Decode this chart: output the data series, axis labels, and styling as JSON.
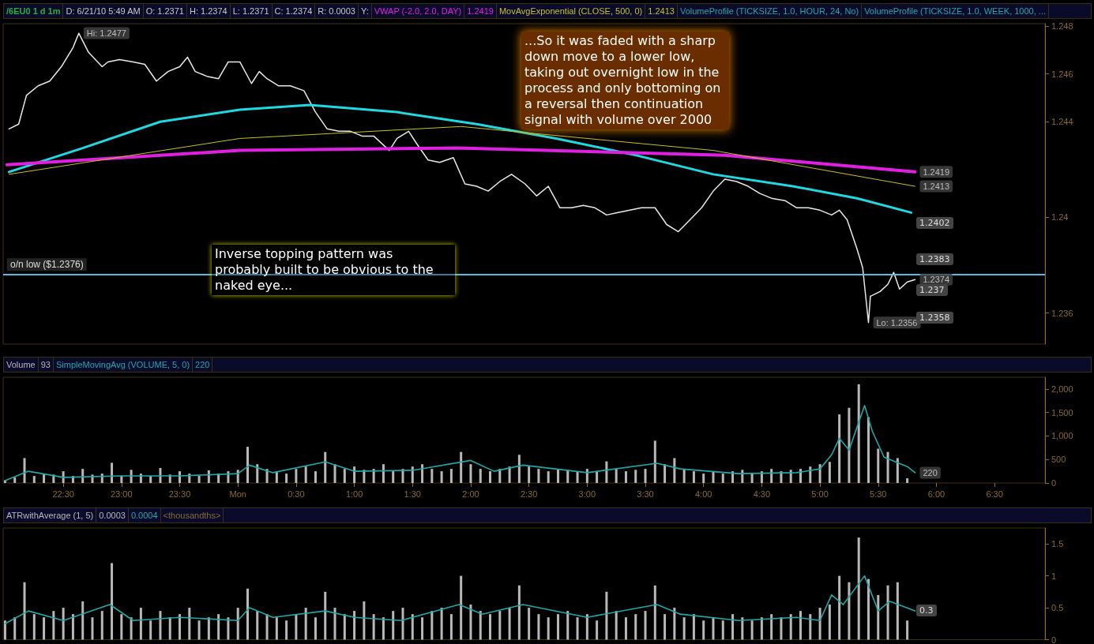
{
  "chart_data": [
    {
      "type": "line",
      "title": "/6EU0 1 d 1m",
      "annotations": [
        "D: 6/21/10 5:49 AM",
        "O: 1.2371",
        "H: 1.2374",
        "L: 1.2371",
        "C: 1.2374",
        "R: 0.0003",
        "Y:",
        "1.2419",
        "1.2413",
        "VolumeProfile (TICKSIZE, 1.0, HOUR, 24, No)",
        "VolumeProfile (TICKSIZE, 1.0, WEEK, 1000, ...",
        "Inverse topping pattern was probably built to be obvious to the naked eye...",
        "...So it was faded with  a sharp down move to a lower low, taking out overnight low in the process and only bottoming on a reversal then continuation signal with volume over 2000",
        "1.2402",
        "1.2383",
        "1.237",
        "1.2358",
        {
          "text": "Hi: 1.2477",
          "x": "--06-20T22:38",
          "y": 1.2477
        },
        {
          "text": "Lo: 1.2356",
          "x": "--06-21T05:25",
          "y": 1.2356
        },
        {
          "text": "1.2419",
          "x": "--06-21T05:49",
          "y": 1.2419
        },
        {
          "text": "1.2413",
          "x": "--06-21T05:49",
          "y": 1.2413
        },
        {
          "text": "1.2374",
          "x": "--06-21T05:49",
          "y": 1.2374
        }
      ],
      "xlim": [
        "--06-20T21:59",
        "--06-21T06:56"
      ],
      "ylim": [
        1.2347,
        1.2481
      ],
      "yticks": [
        1.236,
        1.24,
        1.244,
        1.246,
        1.248
      ],
      "tick_labels": "y",
      "ref_lines": [
        {
          "axis": "y",
          "value": 1.2376,
          "label": "o/n low ($1.2376)",
          "color": "#5ab8e8"
        }
      ],
      "series": [
        {
          "color": "#e8e8e8",
          "x": [
            "--06-20T22:02",
            "--06-20T22:07",
            "--06-20T22:11",
            "--06-20T22:17",
            "--06-20T22:23",
            "--06-20T22:29",
            "--06-20T22:35",
            "--06-20T22:38",
            "--06-20T22:43",
            "--06-20T22:50",
            "--06-20T22:53",
            "--06-20T22:59",
            "--06-20T23:06",
            "--06-20T23:12",
            "--06-20T23:18",
            "--06-20T23:24",
            "--06-20T23:30",
            "--06-20T23:34",
            "--06-20T23:38",
            "--06-20T23:44",
            "--06-20T23:50",
            "--06-20T23:55",
            "--06-21T00:01",
            "--06-21T00:07",
            "--06-21T00:11",
            "--06-21T00:15",
            "--06-21T00:21",
            "--06-21T00:27",
            "--06-21T00:34",
            "--06-21T00:40",
            "--06-21T00:46",
            "--06-21T00:52",
            "--06-21T00:58",
            "--06-21T01:04",
            "--06-21T01:10",
            "--06-21T01:18",
            "--06-21T01:22",
            "--06-21T01:28",
            "--06-21T01:32",
            "--06-21T01:38",
            "--06-21T01:44",
            "--06-21T01:51",
            "--06-21T01:57",
            "--06-21T02:03",
            "--06-21T02:09",
            "--06-21T02:15",
            "--06-21T02:21",
            "--06-21T02:28",
            "--06-21T02:34",
            "--06-21T02:40",
            "--06-21T02:46",
            "--06-21T02:52",
            "--06-21T02:58",
            "--06-21T03:04",
            "--06-21T03:10",
            "--06-21T03:16",
            "--06-21T03:22",
            "--06-21T03:28",
            "--06-21T03:35",
            "--06-21T03:41",
            "--06-21T03:47",
            "--06-21T03:53",
            "--06-21T03:59",
            "--06-21T04:05",
            "--06-21T04:11",
            "--06-21T04:17",
            "--06-21T04:23",
            "--06-21T04:29",
            "--06-21T04:35",
            "--06-21T04:42",
            "--06-21T04:48",
            "--06-21T04:54",
            "--06-21T05:00",
            "--06-21T05:06",
            "--06-21T05:10",
            "--06-21T05:14",
            "--06-21T05:19",
            "--06-21T05:22",
            "--06-21T05:25",
            "--06-21T05:26",
            "--06-21T05:31",
            "--06-21T05:35",
            "--06-21T05:38",
            "--06-21T05:41",
            "--06-21T05:45",
            "--06-21T05:49"
          ],
          "values": [
            1.2437,
            1.2439,
            1.2451,
            1.2455,
            1.2457,
            1.2463,
            1.2471,
            1.2477,
            1.2469,
            1.2463,
            1.2465,
            1.2466,
            1.2465,
            1.2464,
            1.2457,
            1.2461,
            1.2463,
            1.2467,
            1.2461,
            1.2459,
            1.2458,
            1.2465,
            1.2465,
            1.2456,
            1.2461,
            1.2458,
            1.2455,
            1.2455,
            1.2453,
            1.2444,
            1.2437,
            1.2436,
            1.2436,
            1.2434,
            1.2434,
            1.2428,
            1.2433,
            1.2436,
            1.2431,
            1.2424,
            1.2423,
            1.2425,
            1.2414,
            1.2413,
            1.2411,
            1.2415,
            1.2418,
            1.2414,
            1.2409,
            1.2413,
            1.2404,
            1.2404,
            1.2405,
            1.2404,
            1.2401,
            1.2402,
            1.2403,
            1.2404,
            1.2404,
            1.2397,
            1.2394,
            1.2399,
            1.2404,
            1.2411,
            1.2416,
            1.2415,
            1.2413,
            1.241,
            1.2408,
            1.2407,
            1.2404,
            1.2404,
            1.2403,
            1.2401,
            1.2403,
            1.2399,
            1.2387,
            1.2379,
            1.2356,
            1.2367,
            1.2369,
            1.2372,
            1.2377,
            1.237,
            1.2373,
            1.2374
          ]
        },
        {
          "color": "#20d8e0",
          "x": [
            "--06-20T22:02",
            "--06-20T22:40",
            "--06-20T23:20",
            "--06-21T00:01",
            "--06-21T00:37",
            "--06-21T01:22",
            "--06-21T02:03",
            "--06-21T02:44",
            "--06-21T03:25",
            "--06-21T04:05",
            "--06-21T04:46",
            "--06-21T05:19",
            "--06-21T05:47"
          ],
          "values": [
            1.2419,
            1.2429,
            1.244,
            1.2445,
            1.2447,
            1.2444,
            1.2439,
            1.2433,
            1.2426,
            1.2418,
            1.2413,
            1.2408,
            1.2402
          ]
        },
        {
          "name": "VWAP (-2.0, 2.0, DAY)",
          "color": "#e020e0",
          "x": [
            "--06-20T22:01",
            "--06-21T00:01",
            "--06-21T01:53",
            "--06-21T04:11",
            "--06-21T05:49"
          ],
          "values": [
            1.2422,
            1.2428,
            1.2429,
            1.2426,
            1.2419
          ]
        },
        {
          "name": "MovAvgExponential (CLOSE, 500, 0)",
          "color": "#c8c020",
          "x": [
            "--06-20T22:02",
            "--06-21T00:01",
            "--06-21T01:55",
            "--06-21T04:05",
            "--06-21T05:49"
          ],
          "values": [
            1.2418,
            1.2433,
            1.2438,
            1.2428,
            1.2413
          ]
        }
      ]
    },
    {
      "type": "bar",
      "annotations": [
        "93",
        "220",
        {
          "text": "220",
          "x": "--06-21T05:49",
          "y": 220
        }
      ],
      "xlim": [
        "--06-20T21:59",
        "--06-21T06:56"
      ],
      "ylim": [
        0,
        2250
      ],
      "xticks": [
        {
          "value": "--06-20T22:30",
          "label": "22:30"
        },
        {
          "value": "--06-20T23:00",
          "label": "23:00"
        },
        {
          "value": "--06-20T23:30",
          "label": "23:30"
        },
        {
          "value": "--06-21T00:00",
          "label": "Mon"
        },
        {
          "value": "--06-21T00:30",
          "label": "0:30"
        },
        {
          "value": "--06-21T01:00",
          "label": "1:00"
        },
        {
          "value": "--06-21T01:30",
          "label": "1:30"
        },
        {
          "value": "--06-21T02:00",
          "label": "2:00"
        },
        {
          "value": "--06-21T02:30",
          "label": "2:30"
        },
        {
          "value": "--06-21T03:00",
          "label": "3:00"
        },
        {
          "value": "--06-21T03:30",
          "label": "3:30"
        },
        {
          "value": "--06-21T04:00",
          "label": "4:00"
        },
        {
          "value": "--06-21T04:30",
          "label": "4:30"
        },
        {
          "value": "--06-21T05:00",
          "label": "5:00"
        },
        {
          "value": "--06-21T05:30",
          "label": "5:30"
        },
        {
          "value": "--06-21T06:00",
          "label": "6:00"
        },
        {
          "value": "--06-21T06:30",
          "label": "6:30"
        }
      ],
      "yticks": [
        0,
        500,
        {
          "value": 1000,
          "label": "1,000"
        },
        {
          "value": 1500,
          "label": "1,500"
        },
        {
          "value": 2000,
          "label": "2,000"
        }
      ],
      "x": [
        "--06-20T22:00",
        "--06-20T22:05",
        "--06-20T22:10",
        "--06-20T22:15",
        "--06-20T22:20",
        "--06-20T22:25",
        "--06-20T22:30",
        "--06-20T22:35",
        "--06-20T22:40",
        "--06-20T22:45",
        "--06-20T22:50",
        "--06-20T22:55",
        "--06-20T23:00",
        "--06-20T23:05",
        "--06-20T23:10",
        "--06-20T23:15",
        "--06-20T23:20",
        "--06-20T23:25",
        "--06-20T23:30",
        "--06-20T23:35",
        "--06-20T23:40",
        "--06-20T23:45",
        "--06-20T23:50",
        "--06-20T23:55",
        "--06-21T00:00",
        "--06-21T00:05",
        "--06-21T00:10",
        "--06-21T00:15",
        "--06-21T00:20",
        "--06-21T00:25",
        "--06-21T00:30",
        "--06-21T00:35",
        "--06-21T00:40",
        "--06-21T00:45",
        "--06-21T00:50",
        "--06-21T00:55",
        "--06-21T01:00",
        "--06-21T01:05",
        "--06-21T01:10",
        "--06-21T01:15",
        "--06-21T01:20",
        "--06-21T01:25",
        "--06-21T01:30",
        "--06-21T01:35",
        "--06-21T01:40",
        "--06-21T01:45",
        "--06-21T01:50",
        "--06-21T01:55",
        "--06-21T02:00",
        "--06-21T02:05",
        "--06-21T02:10",
        "--06-21T02:15",
        "--06-21T02:20",
        "--06-21T02:25",
        "--06-21T02:30",
        "--06-21T02:35",
        "--06-21T02:40",
        "--06-21T02:45",
        "--06-21T02:50",
        "--06-21T02:55",
        "--06-21T03:00",
        "--06-21T03:05",
        "--06-21T03:10",
        "--06-21T03:15",
        "--06-21T03:20",
        "--06-21T03:25",
        "--06-21T03:30",
        "--06-21T03:35",
        "--06-21T03:40",
        "--06-21T03:45",
        "--06-21T03:50",
        "--06-21T03:55",
        "--06-21T04:00",
        "--06-21T04:05",
        "--06-21T04:10",
        "--06-21T04:15",
        "--06-21T04:20",
        "--06-21T04:25",
        "--06-21T04:30",
        "--06-21T04:35",
        "--06-21T04:40",
        "--06-21T04:45",
        "--06-21T04:50",
        "--06-21T04:55",
        "--06-21T05:00",
        "--06-21T05:05",
        "--06-21T05:10",
        "--06-21T05:15",
        "--06-21T05:20",
        "--06-21T05:25",
        "--06-21T05:30",
        "--06-21T05:35",
        "--06-21T05:40",
        "--06-21T05:45"
      ],
      "series": [
        {
          "name": "Volume",
          "color": "#b8b8b8",
          "values": [
            60,
            120,
            530,
            150,
            200,
            180,
            250,
            150,
            300,
            180,
            200,
            430,
            150,
            280,
            200,
            150,
            320,
            180,
            250,
            200,
            150,
            270,
            200,
            250,
            280,
            770,
            400,
            300,
            250,
            200,
            300,
            350,
            250,
            660,
            400,
            300,
            350,
            280,
            300,
            400,
            250,
            300,
            350,
            400,
            300,
            250,
            300,
            660,
            400,
            300,
            250,
            300,
            350,
            600,
            350,
            300,
            250,
            300,
            280,
            250,
            300,
            250,
            460,
            300,
            250,
            280,
            300,
            900,
            400,
            530,
            300,
            250,
            200,
            250,
            200,
            250,
            280,
            220,
            250,
            300,
            250,
            280,
            300,
            350,
            400,
            450,
            1460,
            1600,
            2100,
            1400,
            730,
            660,
            530,
            100
          ]
        },
        {
          "name": "SimpleMovingAvg (VOLUME, 5, 0)",
          "type": "line",
          "color": "#20a8a8",
          "x": [
            "--06-20T22:00",
            "--06-20T22:12",
            "--06-20T22:30",
            "--06-20T23:00",
            "--06-20T23:30",
            "--06-21T00:00",
            "--06-21T00:06",
            "--06-21T00:18",
            "--06-21T00:45",
            "--06-21T01:00",
            "--06-21T01:30",
            "--06-21T02:00",
            "--06-21T02:12",
            "--06-21T02:27",
            "--06-21T03:00",
            "--06-21T03:36",
            "--06-21T03:48",
            "--06-21T04:18",
            "--06-21T04:48",
            "--06-21T05:00",
            "--06-21T05:06",
            "--06-21T05:10",
            "--06-21T05:15",
            "--06-21T05:23",
            "--06-21T05:27",
            "--06-21T05:33",
            "--06-21T05:39",
            "--06-21T05:45",
            "--06-21T05:49"
          ],
          "values": [
            50,
            250,
            120,
            150,
            150,
            200,
            380,
            220,
            450,
            250,
            270,
            480,
            250,
            380,
            220,
            420,
            300,
            200,
            220,
            300,
            600,
            950,
            700,
            1650,
            1100,
            550,
            450,
            350,
            220
          ]
        }
      ]
    },
    {
      "type": "bar",
      "annotations": [
        "0.0003",
        "0.0004",
        "<thousandths>",
        "0.3"
      ],
      "xlim": [
        "--06-20T21:59",
        "--06-21T06:56"
      ],
      "ylim": [
        0,
        1.75
      ],
      "yticks": [
        0,
        0.5,
        1,
        1.5
      ],
      "tick_labels": "y",
      "x": [
        "--06-20T22:00",
        "--06-20T22:05",
        "--06-20T22:10",
        "--06-20T22:15",
        "--06-20T22:20",
        "--06-20T22:25",
        "--06-20T22:30",
        "--06-20T22:35",
        "--06-20T22:40",
        "--06-20T22:45",
        "--06-20T22:50",
        "--06-20T22:55",
        "--06-20T23:00",
        "--06-20T23:05",
        "--06-20T23:10",
        "--06-20T23:15",
        "--06-20T23:20",
        "--06-20T23:25",
        "--06-20T23:30",
        "--06-20T23:35",
        "--06-20T23:40",
        "--06-20T23:45",
        "--06-20T23:50",
        "--06-20T23:55",
        "--06-21T00:00",
        "--06-21T00:05",
        "--06-21T00:10",
        "--06-21T00:15",
        "--06-21T00:20",
        "--06-21T00:25",
        "--06-21T00:30",
        "--06-21T00:35",
        "--06-21T00:40",
        "--06-21T00:45",
        "--06-21T00:50",
        "--06-21T00:55",
        "--06-21T01:00",
        "--06-21T01:05",
        "--06-21T01:10",
        "--06-21T01:15",
        "--06-21T01:20",
        "--06-21T01:25",
        "--06-21T01:30",
        "--06-21T01:35",
        "--06-21T01:40",
        "--06-21T01:45",
        "--06-21T01:50",
        "--06-21T01:55",
        "--06-21T02:00",
        "--06-21T02:05",
        "--06-21T02:10",
        "--06-21T02:15",
        "--06-21T02:20",
        "--06-21T02:25",
        "--06-21T02:30",
        "--06-21T02:35",
        "--06-21T02:40",
        "--06-21T02:45",
        "--06-21T02:50",
        "--06-21T02:55",
        "--06-21T03:00",
        "--06-21T03:05",
        "--06-21T03:10",
        "--06-21T03:15",
        "--06-21T03:20",
        "--06-21T03:25",
        "--06-21T03:30",
        "--06-21T03:35",
        "--06-21T03:40",
        "--06-21T03:45",
        "--06-21T03:50",
        "--06-21T03:55",
        "--06-21T04:00",
        "--06-21T04:05",
        "--06-21T04:10",
        "--06-21T04:15",
        "--06-21T04:20",
        "--06-21T04:25",
        "--06-21T04:30",
        "--06-21T04:35",
        "--06-21T04:40",
        "--06-21T04:45",
        "--06-21T04:50",
        "--06-21T04:55",
        "--06-21T05:00",
        "--06-21T05:05",
        "--06-21T05:10",
        "--06-21T05:15",
        "--06-21T05:20",
        "--06-21T05:25",
        "--06-21T05:30",
        "--06-21T05:35",
        "--06-21T05:40",
        "--06-21T05:45"
      ],
      "series": [
        {
          "name": "ATRwithAverage (1, 5)",
          "color": "#b8b8b8",
          "values": [
            0.3,
            0.35,
            0.9,
            0.4,
            0.35,
            0.45,
            0.5,
            0.4,
            0.6,
            0.35,
            0.45,
            1.2,
            0.4,
            0.35,
            0.5,
            0.3,
            0.45,
            0.35,
            0.4,
            0.5,
            0.3,
            0.35,
            0.4,
            0.35,
            0.5,
            0.8,
            0.45,
            0.4,
            0.35,
            0.3,
            0.4,
            0.5,
            0.35,
            0.75,
            0.5,
            0.4,
            0.45,
            0.6,
            0.4,
            0.35,
            0.45,
            0.5,
            0.4,
            0.35,
            0.45,
            0.5,
            0.4,
            1.0,
            0.55,
            0.45,
            0.4,
            0.45,
            0.5,
            0.85,
            0.5,
            0.4,
            0.35,
            0.4,
            0.45,
            0.35,
            0.4,
            0.3,
            0.75,
            0.45,
            0.35,
            0.4,
            0.45,
            0.85,
            0.4,
            0.5,
            0.35,
            0.4,
            0.3,
            0.35,
            0.3,
            0.4,
            0.35,
            0.3,
            0.35,
            0.4,
            0.35,
            0.4,
            0.45,
            0.4,
            0.5,
            0.55,
            1.0,
            0.9,
            1.6,
            0.95,
            0.7,
            0.85,
            0.9,
            0.3
          ]
        },
        {
          "type": "line",
          "color": "#20a8a8",
          "x": [
            "--06-20T22:00",
            "--06-20T22:12",
            "--06-20T22:30",
            "--06-20T22:54",
            "--06-20T23:06",
            "--06-20T23:30",
            "--06-21T00:00",
            "--06-21T00:06",
            "--06-21T00:18",
            "--06-21T00:45",
            "--06-21T01:00",
            "--06-21T01:24",
            "--06-21T01:54",
            "--06-21T02:06",
            "--06-21T02:27",
            "--06-21T03:00",
            "--06-21T03:36",
            "--06-21T03:48",
            "--06-21T04:18",
            "--06-21T04:48",
            "--06-21T05:00",
            "--06-21T05:06",
            "--06-21T05:12",
            "--06-21T05:23",
            "--06-21T05:30",
            "--06-21T05:36",
            "--06-21T05:49"
          ],
          "values": [
            0.25,
            0.45,
            0.3,
            0.55,
            0.3,
            0.35,
            0.3,
            0.5,
            0.35,
            0.45,
            0.35,
            0.3,
            0.55,
            0.4,
            0.55,
            0.35,
            0.55,
            0.4,
            0.3,
            0.35,
            0.3,
            0.7,
            0.55,
            1.0,
            0.45,
            0.6,
            0.45
          ]
        }
      ]
    }
  ]
}
